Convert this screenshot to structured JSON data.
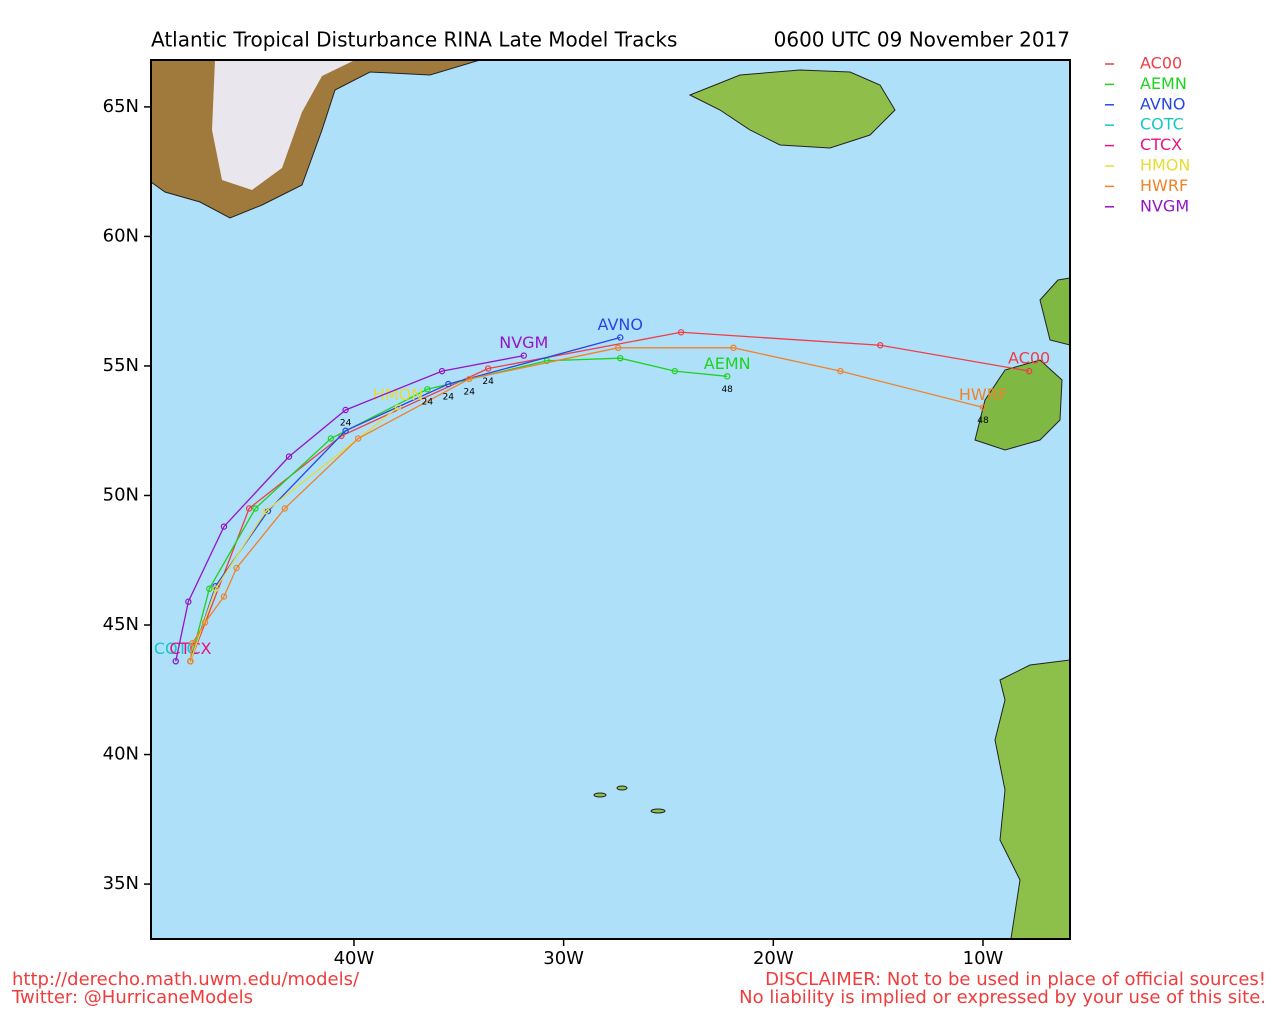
{
  "chart_data": {
    "type": "track-map",
    "title": "Atlantic Tropical Disturbance RINA Late Model Tracks",
    "subtitle": "0600 UTC 09 November 2017",
    "xlim": [
      -49.68,
      -5.85
    ],
    "ylim": [
      32.88,
      66.81
    ],
    "xticks": [
      {
        "value": -40,
        "label": "40W"
      },
      {
        "value": -30,
        "label": "30W"
      },
      {
        "value": -20,
        "label": "20W"
      },
      {
        "value": -10,
        "label": "10W"
      }
    ],
    "yticks": [
      {
        "value": 35,
        "label": "35N"
      },
      {
        "value": 40,
        "label": "40N"
      },
      {
        "value": 45,
        "label": "45N"
      },
      {
        "value": 50,
        "label": "50N"
      },
      {
        "value": 55,
        "label": "55N"
      },
      {
        "value": 60,
        "label": "60N"
      },
      {
        "value": 65,
        "label": "65N"
      }
    ],
    "series": [
      {
        "name": "AC00",
        "color": "#f03c46",
        "lon": [
          -47.8,
          -45.0,
          -40.6,
          -33.6,
          -24.4,
          -14.9,
          -7.8
        ],
        "lat": [
          43.6,
          49.5,
          52.3,
          54.9,
          56.3,
          55.8,
          54.8
        ]
      },
      {
        "name": "AEMN",
        "color": "#1ed21e",
        "lon": [
          -47.8,
          -46.9,
          -44.7,
          -41.1,
          -36.5,
          -30.8,
          -27.3,
          -24.7,
          -22.2
        ],
        "lat": [
          43.6,
          46.4,
          49.5,
          52.2,
          54.1,
          55.2,
          55.3,
          54.8,
          54.6
        ]
      },
      {
        "name": "AVNO",
        "color": "#2846e6",
        "lon": [
          -47.8,
          -46.6,
          -44.1,
          -40.4,
          -35.5,
          -27.3
        ],
        "lat": [
          43.6,
          46.5,
          49.4,
          52.5,
          54.3,
          56.1
        ]
      },
      {
        "name": "COTC",
        "color": "#14c8c8",
        "lon": [
          -48.5
        ],
        "lat": [
          43.6
        ]
      },
      {
        "name": "CTCX",
        "color": "#e6147d",
        "lon": [
          -47.8
        ],
        "lat": [
          43.6
        ]
      },
      {
        "name": "HMON",
        "color": "#e6dc32",
        "lon": [
          -47.8,
          -46.6,
          -44.2,
          -37.9
        ],
        "lat": [
          43.6,
          46.4,
          49.4,
          53.4
        ]
      },
      {
        "name": "HWRF",
        "color": "#f08228",
        "lon": [
          -47.8,
          -47.7,
          -47.1,
          -46.2,
          -45.6,
          -43.3,
          -39.8,
          -34.5,
          -27.4,
          -21.9,
          -16.8,
          -10.0
        ],
        "lat": [
          43.6,
          44.3,
          45.1,
          46.1,
          47.2,
          49.5,
          52.2,
          54.5,
          55.7,
          55.7,
          54.8,
          53.4
        ]
      },
      {
        "name": "NVGM",
        "color": "#9614c8",
        "lon": [
          -48.5,
          -47.9,
          -46.2,
          -43.1,
          -40.4,
          -35.8,
          -31.9
        ],
        "lat": [
          43.6,
          45.9,
          48.8,
          51.5,
          53.3,
          54.8,
          55.4
        ]
      }
    ],
    "hour_labels": [
      {
        "text": "24",
        "lon": -40.4,
        "lat": 52.8
      },
      {
        "text": "24",
        "lon": -36.5,
        "lat": 53.6
      },
      {
        "text": "24",
        "lon": -35.5,
        "lat": 53.8
      },
      {
        "text": "24",
        "lon": -34.5,
        "lat": 54.0
      },
      {
        "text": "24",
        "lon": -33.6,
        "lat": 54.4
      },
      {
        "text": "48",
        "lon": -22.2,
        "lat": 54.1
      },
      {
        "text": "48",
        "lon": -10.0,
        "lat": 52.9
      }
    ],
    "footer_left": [
      "http://derecho.math.uwm.edu/models/",
      "Twitter: @HurricaneModels"
    ],
    "footer_right": [
      "DISCLAIMER: Not to be used in place of official sources!",
      "No liability is implied or expressed by your use of this site."
    ]
  }
}
